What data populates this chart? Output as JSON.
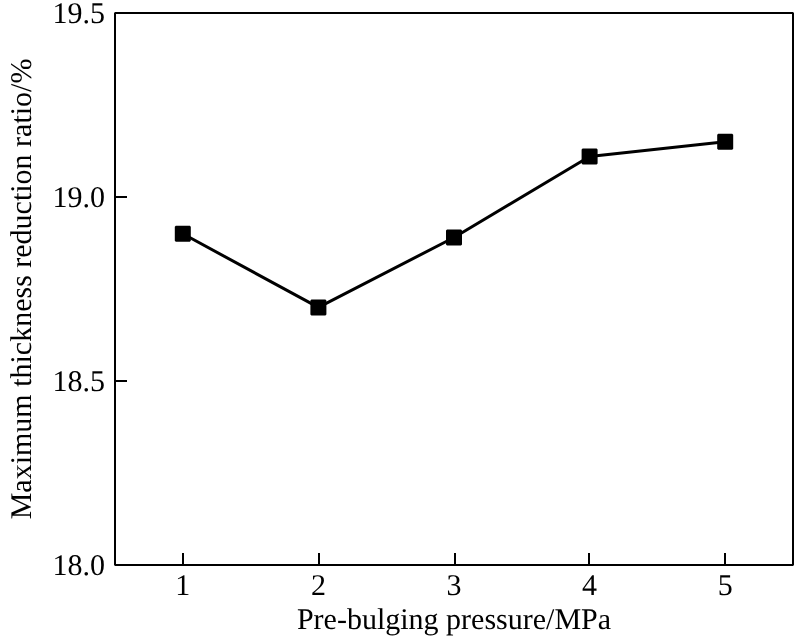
{
  "chart_data": {
    "type": "line",
    "xlabel": "Pre-bulging pressure/MPa",
    "ylabel": "Maximum thickness reduction ratio/%",
    "x": [
      1,
      2,
      3,
      4,
      5
    ],
    "series": [
      {
        "color": "#000000",
        "values": [
          18.9,
          18.7,
          18.89,
          19.11,
          19.15
        ]
      }
    ],
    "xlim": [
      0.5,
      5.5
    ],
    "xticks": [
      1,
      2,
      3,
      4,
      5
    ],
    "ylim": [
      18.0,
      19.5
    ],
    "yticks": [
      {
        "value": 18.0,
        "label": "18.0"
      },
      {
        "value": 18.5,
        "label": "18.5"
      },
      {
        "value": 19.0,
        "label": "19.0"
      },
      {
        "value": 19.5,
        "label": "19.5"
      }
    ],
    "marker": "square",
    "line_style": "solid",
    "grid": false
  }
}
